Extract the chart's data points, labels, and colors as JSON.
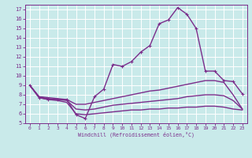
{
  "xlabel": "Windchill (Refroidissement éolien,°C)",
  "background_color": "#c9eaea",
  "line_color": "#7b2d8b",
  "grid_color": "#ffffff",
  "xlim": [
    -0.5,
    23.5
  ],
  "ylim": [
    5,
    17.5
  ],
  "xticks": [
    0,
    1,
    2,
    3,
    4,
    5,
    6,
    7,
    8,
    9,
    10,
    11,
    12,
    13,
    14,
    15,
    16,
    17,
    18,
    19,
    20,
    21,
    22,
    23
  ],
  "yticks": [
    5,
    6,
    7,
    8,
    9,
    10,
    11,
    12,
    13,
    14,
    15,
    16,
    17
  ],
  "main_line": {
    "x": [
      0,
      1,
      2,
      3,
      4,
      5,
      6,
      7,
      8,
      9,
      10,
      11,
      12,
      13,
      14,
      15,
      16,
      17,
      18,
      19,
      20,
      21,
      22,
      23
    ],
    "y": [
      9.0,
      7.7,
      7.5,
      7.5,
      7.5,
      5.9,
      5.5,
      7.8,
      8.6,
      11.2,
      11.0,
      11.5,
      12.5,
      13.2,
      15.5,
      15.9,
      17.2,
      16.5,
      15.0,
      10.5,
      10.5,
      9.5,
      9.4,
      8.1
    ]
  },
  "line1": {
    "x": [
      0,
      1,
      2,
      3,
      4,
      5,
      6,
      7,
      8,
      9,
      10,
      11,
      12,
      13,
      14,
      15,
      16,
      17,
      18,
      19,
      20,
      21,
      22,
      23
    ],
    "y": [
      9.0,
      7.8,
      7.7,
      7.6,
      7.5,
      7.0,
      7.0,
      7.2,
      7.4,
      7.6,
      7.8,
      8.0,
      8.2,
      8.4,
      8.5,
      8.7,
      8.9,
      9.1,
      9.3,
      9.5,
      9.5,
      9.3,
      8.0,
      6.5
    ]
  },
  "line2": {
    "x": [
      0,
      1,
      2,
      3,
      4,
      5,
      6,
      7,
      8,
      9,
      10,
      11,
      12,
      13,
      14,
      15,
      16,
      17,
      18,
      19,
      20,
      21,
      22,
      23
    ],
    "y": [
      9.0,
      7.8,
      7.6,
      7.5,
      7.4,
      6.5,
      6.4,
      6.5,
      6.7,
      6.9,
      7.0,
      7.1,
      7.2,
      7.3,
      7.4,
      7.5,
      7.6,
      7.8,
      7.9,
      8.0,
      8.0,
      7.9,
      7.4,
      6.5
    ]
  },
  "line3": {
    "x": [
      0,
      1,
      2,
      3,
      4,
      5,
      6,
      7,
      8,
      9,
      10,
      11,
      12,
      13,
      14,
      15,
      16,
      17,
      18,
      19,
      20,
      21,
      22,
      23
    ],
    "y": [
      9.0,
      7.7,
      7.5,
      7.4,
      7.2,
      6.0,
      5.9,
      6.0,
      6.1,
      6.2,
      6.3,
      6.4,
      6.4,
      6.5,
      6.5,
      6.6,
      6.6,
      6.7,
      6.7,
      6.8,
      6.8,
      6.7,
      6.5,
      6.4
    ]
  }
}
